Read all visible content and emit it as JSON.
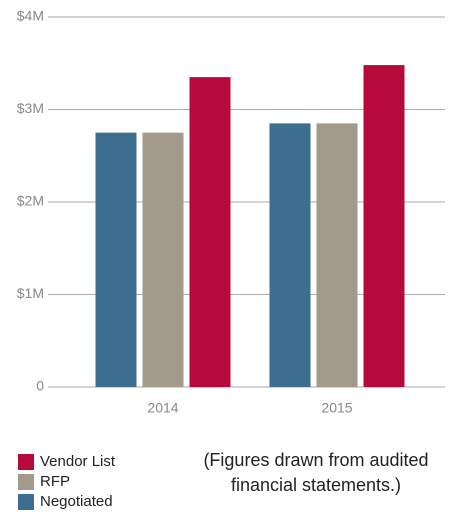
{
  "chart_data": {
    "type": "bar",
    "categories": [
      "2014",
      "2015"
    ],
    "series": [
      {
        "name": "Negotiated",
        "color": "#3d6e8f",
        "values": [
          2.75,
          2.85
        ]
      },
      {
        "name": "RFP",
        "color": "#a39a8c",
        "values": [
          2.75,
          2.85
        ]
      },
      {
        "name": "Vendor List",
        "color": "#b80a3a",
        "values": [
          3.35,
          3.48
        ]
      }
    ],
    "ylim": [
      0,
      4
    ],
    "yticks": [
      0,
      {
        "value": 1,
        "label": "$1M"
      },
      {
        "value": 2,
        "label": "$2M"
      },
      {
        "value": 3,
        "label": "$3M"
      },
      {
        "value": 4,
        "label": "$4M"
      }
    ],
    "grid": true,
    "legend": "bottom-left",
    "annotation": "(Figures drawn from audited financial statements.)"
  }
}
